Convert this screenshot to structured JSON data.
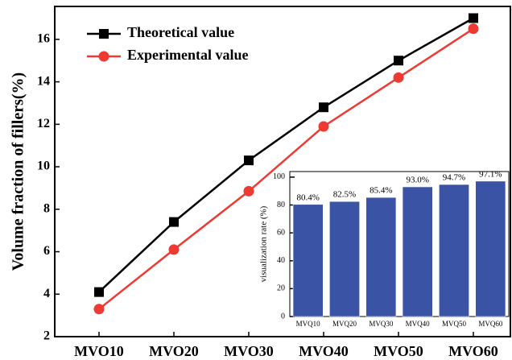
{
  "chart_data": [
    {
      "type": "line",
      "y_label": "Volume fraction of fillers(%)",
      "categories": [
        "MVO10",
        "MVO20",
        "MVO30",
        "MVO40",
        "MVO50",
        "MVO60"
      ],
      "series": [
        {
          "name": "Theoretical value",
          "color": "#000000",
          "marker": "square",
          "values": [
            4.1,
            7.4,
            10.3,
            12.8,
            15.0,
            17.0
          ]
        },
        {
          "name": "Experimental value",
          "color": "#ee3a33",
          "marker": "circle",
          "values": [
            3.3,
            6.1,
            8.85,
            11.9,
            14.2,
            16.5
          ]
        }
      ],
      "ylim": [
        2,
        17.55
      ],
      "yticks": [
        2,
        4,
        6,
        8,
        10,
        12,
        14,
        16
      ],
      "legend": "top-left",
      "grid": false
    },
    {
      "type": "bar",
      "y_label": "visualization rate (%)",
      "categories": [
        "MVQ10",
        "MVQ20",
        "MVQ30",
        "MVQ40",
        "MVQ50",
        "MVQ60"
      ],
      "values": [
        80.4,
        82.5,
        85.4,
        93.0,
        94.7,
        97.1
      ],
      "value_labels": [
        "80.4%",
        "82.5%",
        "85.4%",
        "93.0%",
        "94.7%",
        "97.1%"
      ],
      "color": "#3a53a4",
      "ylim": [
        0,
        104
      ],
      "yticks": [
        0,
        20,
        40,
        60,
        80,
        100
      ],
      "grid": false
    }
  ]
}
